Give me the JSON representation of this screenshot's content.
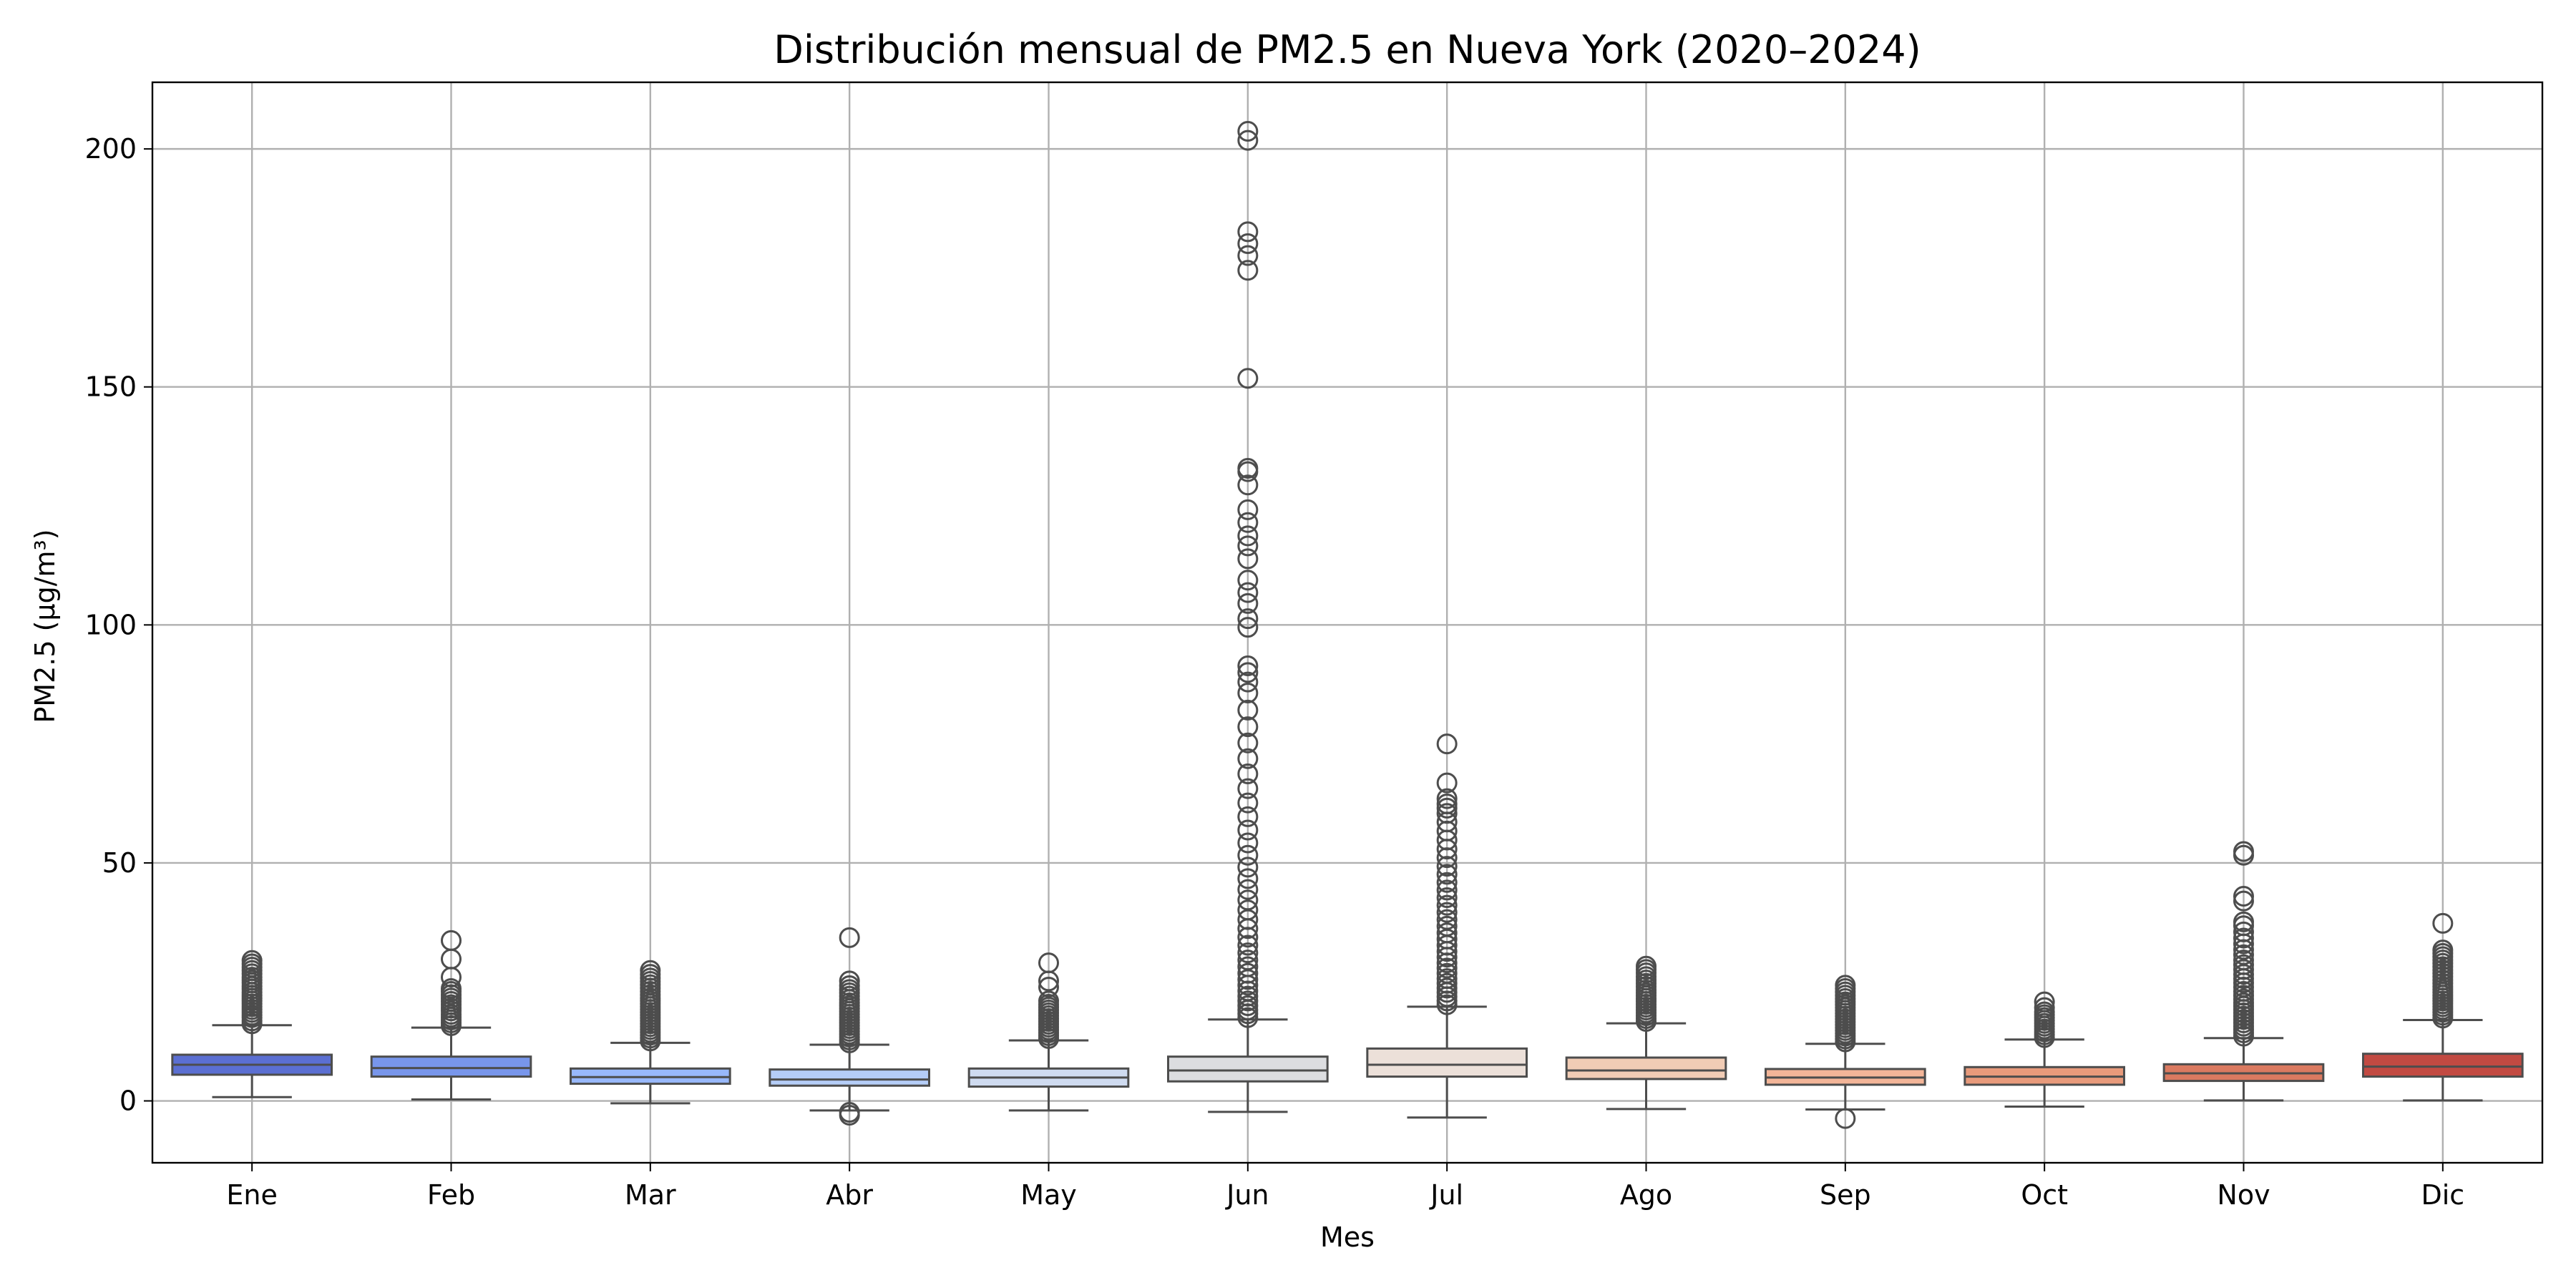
{
  "chart_data": {
    "type": "box",
    "title": "Distribución mensual de PM2.5 en Nueva York (2020–2024)",
    "xlabel": "Mes",
    "ylabel": "PM2.5 (µg/m³)",
    "ylim": [
      -13,
      214
    ],
    "yticks": [
      0,
      50,
      100,
      150,
      200
    ],
    "grid": true,
    "legend": "none",
    "categories": [
      "Ene",
      "Feb",
      "Mar",
      "Abr",
      "May",
      "Jun",
      "Jul",
      "Ago",
      "Sep",
      "Oct",
      "Nov",
      "Dic"
    ],
    "series": [
      {
        "whisker_low": 0.8,
        "q1": 5.5,
        "median": 7.6,
        "q3": 9.7,
        "whisker_high": 15.9,
        "outliers": [
          16.2,
          16.8,
          17.5,
          18.0,
          18.6,
          19.2,
          19.8,
          20.4,
          21.0,
          21.6,
          22.2,
          22.8,
          23.5,
          24.1,
          24.8,
          25.4,
          26.0,
          26.7,
          27.4,
          28.1,
          28.8,
          29.5
        ],
        "color": "#5b6fd2"
      },
      {
        "whisker_low": 0.3,
        "q1": 5.1,
        "median": 6.9,
        "q3": 9.3,
        "whisker_high": 15.4,
        "outliers": [
          15.8,
          16.4,
          17.0,
          17.6,
          18.2,
          18.9,
          19.5,
          20.2,
          20.9,
          21.6,
          22.3,
          23.0,
          23.6,
          26.0,
          29.8,
          33.7
        ],
        "color": "#7896eb"
      },
      {
        "whisker_low": -0.5,
        "q1": 3.6,
        "median": 5.0,
        "q3": 6.8,
        "whisker_high": 12.2,
        "outliers": [
          12.6,
          13.2,
          13.8,
          14.4,
          15.0,
          15.6,
          16.2,
          16.8,
          17.4,
          18.0,
          18.6,
          19.2,
          19.8,
          20.4,
          21.0,
          21.6,
          22.3,
          23.0,
          23.7,
          24.4,
          25.1,
          25.8,
          26.6,
          27.4
        ],
        "color": "#98b8fb"
      },
      {
        "whisker_low": -2.0,
        "q1": 3.2,
        "median": 4.5,
        "q3": 6.6,
        "whisker_high": 11.8,
        "outliers": [
          -2.4,
          -3.0,
          12.2,
          12.8,
          13.4,
          14.0,
          14.6,
          15.2,
          15.8,
          16.4,
          17.0,
          17.6,
          18.2,
          18.8,
          19.4,
          20.0,
          20.6,
          21.3,
          22.0,
          22.7,
          23.4,
          24.2,
          25.2,
          34.3
        ],
        "color": "#b5cdf7"
      },
      {
        "whisker_low": -2.0,
        "q1": 3.0,
        "median": 4.9,
        "q3": 6.8,
        "whisker_high": 12.7,
        "outliers": [
          13.1,
          13.7,
          14.3,
          14.9,
          15.5,
          16.1,
          16.7,
          17.3,
          17.9,
          18.5,
          19.1,
          19.7,
          20.3,
          21.0,
          23.9,
          25.2,
          29.0
        ],
        "color": "#cfdbf0"
      },
      {
        "whisker_low": -2.3,
        "q1": 4.1,
        "median": 6.4,
        "q3": 9.3,
        "whisker_high": 17.1,
        "outliers": [
          17.5,
          18.3,
          19.1,
          20.0,
          21.0,
          22.0,
          23.1,
          24.3,
          25.5,
          26.8,
          28.2,
          29.6,
          31.1,
          32.7,
          34.4,
          36.2,
          38.1,
          40.1,
          42.2,
          44.4,
          46.7,
          49.1,
          51.6,
          54.2,
          56.9,
          59.7,
          62.6,
          65.6,
          68.7,
          71.9,
          75.2,
          78.6,
          82.1,
          85.7,
          88.0,
          90.0,
          91.4,
          99.5,
          101.3,
          104.5,
          106.8,
          109.4,
          113.9,
          116.6,
          118.7,
          121.5,
          124.2,
          129.4,
          132.2,
          132.9,
          151.8,
          174.5,
          177.6,
          180.1,
          182.6,
          201.8,
          203.7
        ],
        "color": "#dcdde0"
      },
      {
        "whisker_low": -3.5,
        "q1": 5.1,
        "median": 7.6,
        "q3": 11.0,
        "whisker_high": 19.8,
        "outliers": [
          20.2,
          21.0,
          21.9,
          22.8,
          23.7,
          24.7,
          25.7,
          26.8,
          27.9,
          29.0,
          30.2,
          31.4,
          32.7,
          34.0,
          35.3,
          36.7,
          38.1,
          39.6,
          41.1,
          42.7,
          44.3,
          45.9,
          47.6,
          49.3,
          51.1,
          52.9,
          54.8,
          56.7,
          58.6,
          60.4,
          61.5,
          62.4,
          63.5,
          66.8,
          75.0
        ],
        "color": "#ece0d9"
      },
      {
        "whisker_low": -1.7,
        "q1": 4.6,
        "median": 6.4,
        "q3": 9.1,
        "whisker_high": 16.3,
        "outliers": [
          16.7,
          17.3,
          17.9,
          18.5,
          19.1,
          19.7,
          20.3,
          20.9,
          21.5,
          22.1,
          22.7,
          23.3,
          24.0,
          24.7,
          25.4,
          26.1,
          26.9,
          27.6,
          28.3
        ],
        "color": "#f1ccb5"
      },
      {
        "whisker_low": -1.8,
        "q1": 3.4,
        "median": 4.9,
        "q3": 6.7,
        "whisker_high": 12.0,
        "outliers": [
          -3.7,
          12.4,
          13.0,
          13.6,
          14.2,
          14.8,
          15.4,
          16.0,
          16.6,
          17.2,
          17.8,
          18.4,
          19.0,
          19.6,
          20.2,
          20.8,
          21.5,
          22.2,
          22.9,
          23.6,
          24.3
        ],
        "color": "#f3b598"
      },
      {
        "whisker_low": -1.2,
        "q1": 3.4,
        "median": 5.1,
        "q3": 7.1,
        "whisker_high": 12.9,
        "outliers": [
          13.3,
          13.9,
          14.5,
          15.1,
          15.7,
          16.3,
          16.9,
          17.5,
          18.1,
          18.7,
          19.6,
          20.8
        ],
        "color": "#e89a7b"
      },
      {
        "whisker_low": 0.1,
        "q1": 4.2,
        "median": 5.8,
        "q3": 7.7,
        "whisker_high": 13.2,
        "outliers": [
          13.6,
          14.3,
          15.0,
          15.7,
          16.4,
          17.1,
          17.8,
          18.5,
          19.2,
          19.9,
          20.6,
          21.4,
          22.2,
          23.0,
          23.9,
          24.8,
          25.7,
          26.6,
          27.6,
          28.6,
          29.6,
          30.7,
          31.8,
          33.0,
          34.2,
          35.5,
          36.8,
          37.6,
          42.0,
          43.0,
          51.6,
          52.4
        ],
        "color": "#db7a60"
      },
      {
        "whisker_low": 0.1,
        "q1": 5.1,
        "median": 7.2,
        "q3": 9.9,
        "whisker_high": 17.0,
        "outliers": [
          17.4,
          18.0,
          18.6,
          19.2,
          19.8,
          20.4,
          21.0,
          21.6,
          22.2,
          22.8,
          23.4,
          24.0,
          24.7,
          25.4,
          26.1,
          26.8,
          27.5,
          28.2,
          28.9,
          29.6,
          30.3,
          31.0,
          31.7,
          37.3
        ],
        "color": "#c24a42"
      }
    ]
  }
}
